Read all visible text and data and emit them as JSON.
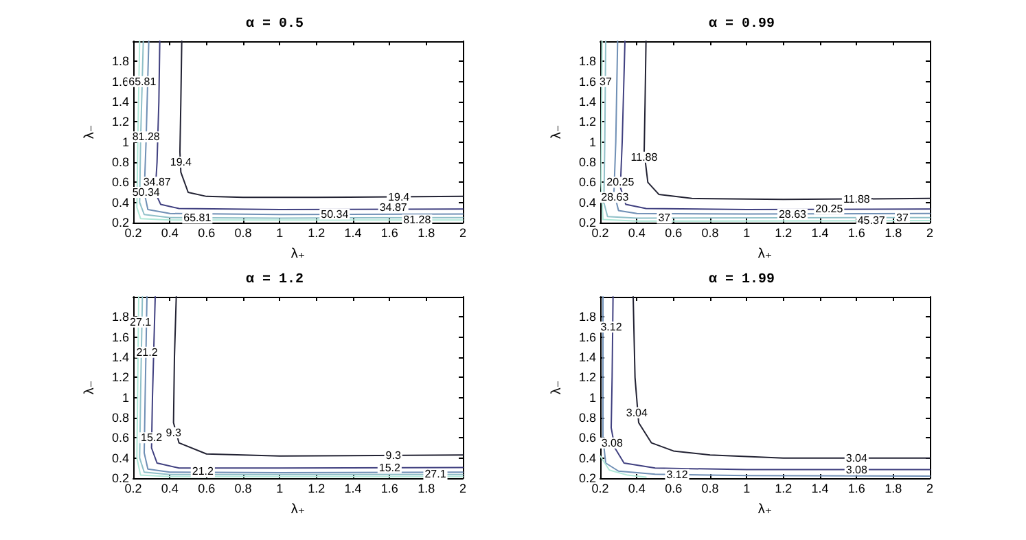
{
  "chart_data": [
    {
      "type": "line",
      "title": "α = 0.5",
      "xlabel": "λ₊",
      "ylabel": "λ₋",
      "xlim": [
        0.2,
        2
      ],
      "ylim": [
        0.2,
        2
      ],
      "xticks": [
        0.2,
        0.4,
        0.6,
        0.8,
        1,
        1.2,
        1.4,
        1.6,
        1.8,
        2
      ],
      "yticks": [
        0.2,
        0.4,
        0.6,
        0.8,
        1,
        1.2,
        1.4,
        1.6,
        1.8
      ],
      "marker": "none",
      "line_style": "solid",
      "series": [
        {
          "color": "#222233",
          "x": [
            0.465,
            0.46,
            0.455,
            0.46,
            0.5,
            0.6,
            0.8,
            1.2,
            2
          ],
          "values": [
            2,
            1.4,
            0.9,
            0.7,
            0.5,
            0.46,
            0.45,
            0.45,
            0.46
          ]
        },
        {
          "color": "#404080",
          "x": [
            0.345,
            0.34,
            0.33,
            0.32,
            0.35,
            0.45,
            1,
            2
          ],
          "values": [
            2,
            1.4,
            0.8,
            0.5,
            0.38,
            0.34,
            0.33,
            0.335
          ]
        },
        {
          "color": "#6f8fb5",
          "x": [
            0.285,
            0.27,
            0.26,
            0.28,
            0.4,
            1,
            2
          ],
          "values": [
            2,
            1,
            0.5,
            0.33,
            0.29,
            0.28,
            0.285
          ]
        },
        {
          "color": "#8fc0c8",
          "x": [
            0.255,
            0.24,
            0.235,
            0.26,
            0.4,
            1,
            2
          ],
          "values": [
            2,
            1,
            0.4,
            0.28,
            0.25,
            0.245,
            0.25
          ]
        },
        {
          "color": "#b0e8d8",
          "x": [
            0.235,
            0.225,
            0.22,
            0.24,
            0.4,
            2
          ],
          "values": [
            2,
            1,
            0.35,
            0.24,
            0.225,
            0.225
          ]
        }
      ],
      "annotations": [
        {
          "text": "65.81",
          "x": 0.25,
          "y": 1.6
        },
        {
          "text": "81.28",
          "x": 0.27,
          "y": 1.05
        },
        {
          "text": "19.4",
          "x": 0.46,
          "y": 0.8
        },
        {
          "text": "34.87",
          "x": 0.33,
          "y": 0.6
        },
        {
          "text": "50.34",
          "x": 0.27,
          "y": 0.5
        },
        {
          "text": "65.81",
          "x": 0.55,
          "y": 0.245
        },
        {
          "text": "19.4",
          "x": 1.65,
          "y": 0.455
        },
        {
          "text": "34.87",
          "x": 1.62,
          "y": 0.35
        },
        {
          "text": "50.34",
          "x": 1.3,
          "y": 0.285
        },
        {
          "text": "81.28",
          "x": 1.75,
          "y": 0.225
        }
      ]
    },
    {
      "type": "line",
      "title": "α = 0.99",
      "xlabel": "λ₊",
      "ylabel": "λ₋",
      "xlim": [
        0.2,
        2
      ],
      "ylim": [
        0.2,
        2
      ],
      "xticks": [
        0.2,
        0.4,
        0.6,
        0.8,
        1,
        1.2,
        1.4,
        1.6,
        1.8,
        2
      ],
      "yticks": [
        0.2,
        0.4,
        0.6,
        0.8,
        1,
        1.2,
        1.4,
        1.6,
        1.8
      ],
      "marker": "none",
      "line_style": "solid",
      "series": [
        {
          "color": "#222233",
          "x": [
            0.45,
            0.445,
            0.44,
            0.46,
            0.52,
            0.7,
            1.2,
            2
          ],
          "values": [
            2,
            1.4,
            0.9,
            0.6,
            0.48,
            0.44,
            0.43,
            0.44
          ]
        },
        {
          "color": "#404080",
          "x": [
            0.335,
            0.32,
            0.31,
            0.34,
            0.45,
            1,
            2
          ],
          "values": [
            2,
            1,
            0.55,
            0.38,
            0.34,
            0.33,
            0.335
          ]
        },
        {
          "color": "#6f8fb5",
          "x": [
            0.295,
            0.285,
            0.275,
            0.3,
            0.4,
            1,
            2
          ],
          "values": [
            2,
            1,
            0.5,
            0.32,
            0.29,
            0.285,
            0.29
          ]
        },
        {
          "color": "#8fc0c8",
          "x": [
            0.23,
            0.225,
            0.22,
            0.24,
            0.4,
            2
          ],
          "values": [
            2,
            1,
            0.4,
            0.26,
            0.245,
            0.25
          ]
        },
        {
          "color": "#b0e8d8",
          "x": [
            0.21,
            0.205,
            0.215,
            0.4,
            2
          ],
          "values": [
            2,
            0.6,
            0.23,
            0.215,
            0.22
          ]
        }
      ],
      "annotations": [
        {
          "text": "37",
          "x": 0.23,
          "y": 1.6
        },
        {
          "text": "11.88",
          "x": 0.44,
          "y": 0.85
        },
        {
          "text": "20.25",
          "x": 0.31,
          "y": 0.6
        },
        {
          "text": "28.63",
          "x": 0.28,
          "y": 0.45
        },
        {
          "text": "37",
          "x": 0.55,
          "y": 0.245
        },
        {
          "text": "11.88",
          "x": 1.6,
          "y": 0.435
        },
        {
          "text": "20.25",
          "x": 1.45,
          "y": 0.335
        },
        {
          "text": "28.63",
          "x": 1.25,
          "y": 0.285
        },
        {
          "text": "45.37",
          "x": 1.68,
          "y": 0.22
        },
        {
          "text": "37",
          "x": 1.85,
          "y": 0.25
        }
      ]
    },
    {
      "type": "line",
      "title": "α = 1.2",
      "xlabel": "λ₊",
      "ylabel": "λ₋",
      "xlim": [
        0.2,
        2
      ],
      "ylim": [
        0.2,
        2
      ],
      "xticks": [
        0.2,
        0.4,
        0.6,
        0.8,
        1,
        1.2,
        1.4,
        1.6,
        1.8,
        2
      ],
      "yticks": [
        0.2,
        0.4,
        0.6,
        0.8,
        1,
        1.2,
        1.4,
        1.6,
        1.8
      ],
      "marker": "none",
      "line_style": "solid",
      "series": [
        {
          "color": "#222233",
          "x": [
            0.435,
            0.425,
            0.42,
            0.45,
            0.6,
            1,
            2
          ],
          "values": [
            2,
            1.4,
            0.75,
            0.55,
            0.44,
            0.42,
            0.43
          ]
        },
        {
          "color": "#404080",
          "x": [
            0.32,
            0.305,
            0.3,
            0.33,
            0.45,
            1,
            2
          ],
          "values": [
            2,
            1,
            0.5,
            0.35,
            0.3,
            0.3,
            0.305
          ]
        },
        {
          "color": "#6f8fb5",
          "x": [
            0.275,
            0.265,
            0.26,
            0.28,
            0.4,
            1,
            2
          ],
          "values": [
            2,
            1,
            0.45,
            0.29,
            0.26,
            0.255,
            0.26
          ]
        },
        {
          "color": "#8fc0c8",
          "x": [
            0.25,
            0.24,
            0.235,
            0.26,
            0.4,
            2
          ],
          "values": [
            2,
            1,
            0.4,
            0.26,
            0.235,
            0.235
          ]
        },
        {
          "color": "#b0e8d8",
          "x": [
            0.23,
            0.22,
            0.24,
            0.4,
            2
          ],
          "values": [
            2,
            0.4,
            0.23,
            0.215,
            0.215
          ]
        }
      ],
      "annotations": [
        {
          "text": "27.1",
          "x": 0.24,
          "y": 1.75
        },
        {
          "text": "21.2",
          "x": 0.275,
          "y": 1.45
        },
        {
          "text": "9.3",
          "x": 0.42,
          "y": 0.65
        },
        {
          "text": "15.2",
          "x": 0.3,
          "y": 0.6
        },
        {
          "text": "21.2",
          "x": 0.58,
          "y": 0.265
        },
        {
          "text": "9.3",
          "x": 1.62,
          "y": 0.425
        },
        {
          "text": "15.2",
          "x": 1.6,
          "y": 0.305
        },
        {
          "text": "27.1",
          "x": 1.85,
          "y": 0.24
        }
      ]
    },
    {
      "type": "line",
      "title": "α = 1.99",
      "xlabel": "λ₊",
      "ylabel": "λ₋",
      "xlim": [
        0.2,
        2
      ],
      "ylim": [
        0.2,
        2
      ],
      "xticks": [
        0.2,
        0.4,
        0.6,
        0.8,
        1,
        1.2,
        1.4,
        1.6,
        1.8,
        2
      ],
      "yticks": [
        0.2,
        0.4,
        0.6,
        0.8,
        1,
        1.2,
        1.4,
        1.6,
        1.8
      ],
      "marker": "none",
      "line_style": "solid",
      "series": [
        {
          "color": "#222233",
          "x": [
            0.38,
            0.39,
            0.41,
            0.48,
            0.6,
            0.8,
            1.2,
            2
          ],
          "values": [
            2,
            1.2,
            0.75,
            0.55,
            0.47,
            0.43,
            0.4,
            0.4
          ]
        },
        {
          "color": "#404080",
          "x": [
            0.27,
            0.265,
            0.26,
            0.28,
            0.33,
            0.5,
            1,
            2
          ],
          "values": [
            2,
            1.2,
            0.7,
            0.5,
            0.35,
            0.3,
            0.285,
            0.285
          ]
        },
        {
          "color": "#6f8fb5",
          "x": [
            0.215,
            0.215,
            0.23,
            0.3,
            0.5,
            1,
            2
          ],
          "values": [
            2,
            0.6,
            0.35,
            0.27,
            0.24,
            0.225,
            0.22
          ]
        },
        {
          "color": "#b0e8d8",
          "x": [
            0.2,
            0.25,
            0.35,
            0.45
          ],
          "values": [
            0.42,
            0.28,
            0.23,
            0.21
          ]
        }
      ],
      "annotations": [
        {
          "text": "3.12",
          "x": 0.26,
          "y": 1.7
        },
        {
          "text": "3.04",
          "x": 0.4,
          "y": 0.85
        },
        {
          "text": "3.08",
          "x": 0.265,
          "y": 0.55
        },
        {
          "text": "3.12",
          "x": 0.62,
          "y": 0.235
        },
        {
          "text": "3.04",
          "x": 1.6,
          "y": 0.4
        },
        {
          "text": "3.08",
          "x": 1.6,
          "y": 0.285
        }
      ]
    }
  ]
}
